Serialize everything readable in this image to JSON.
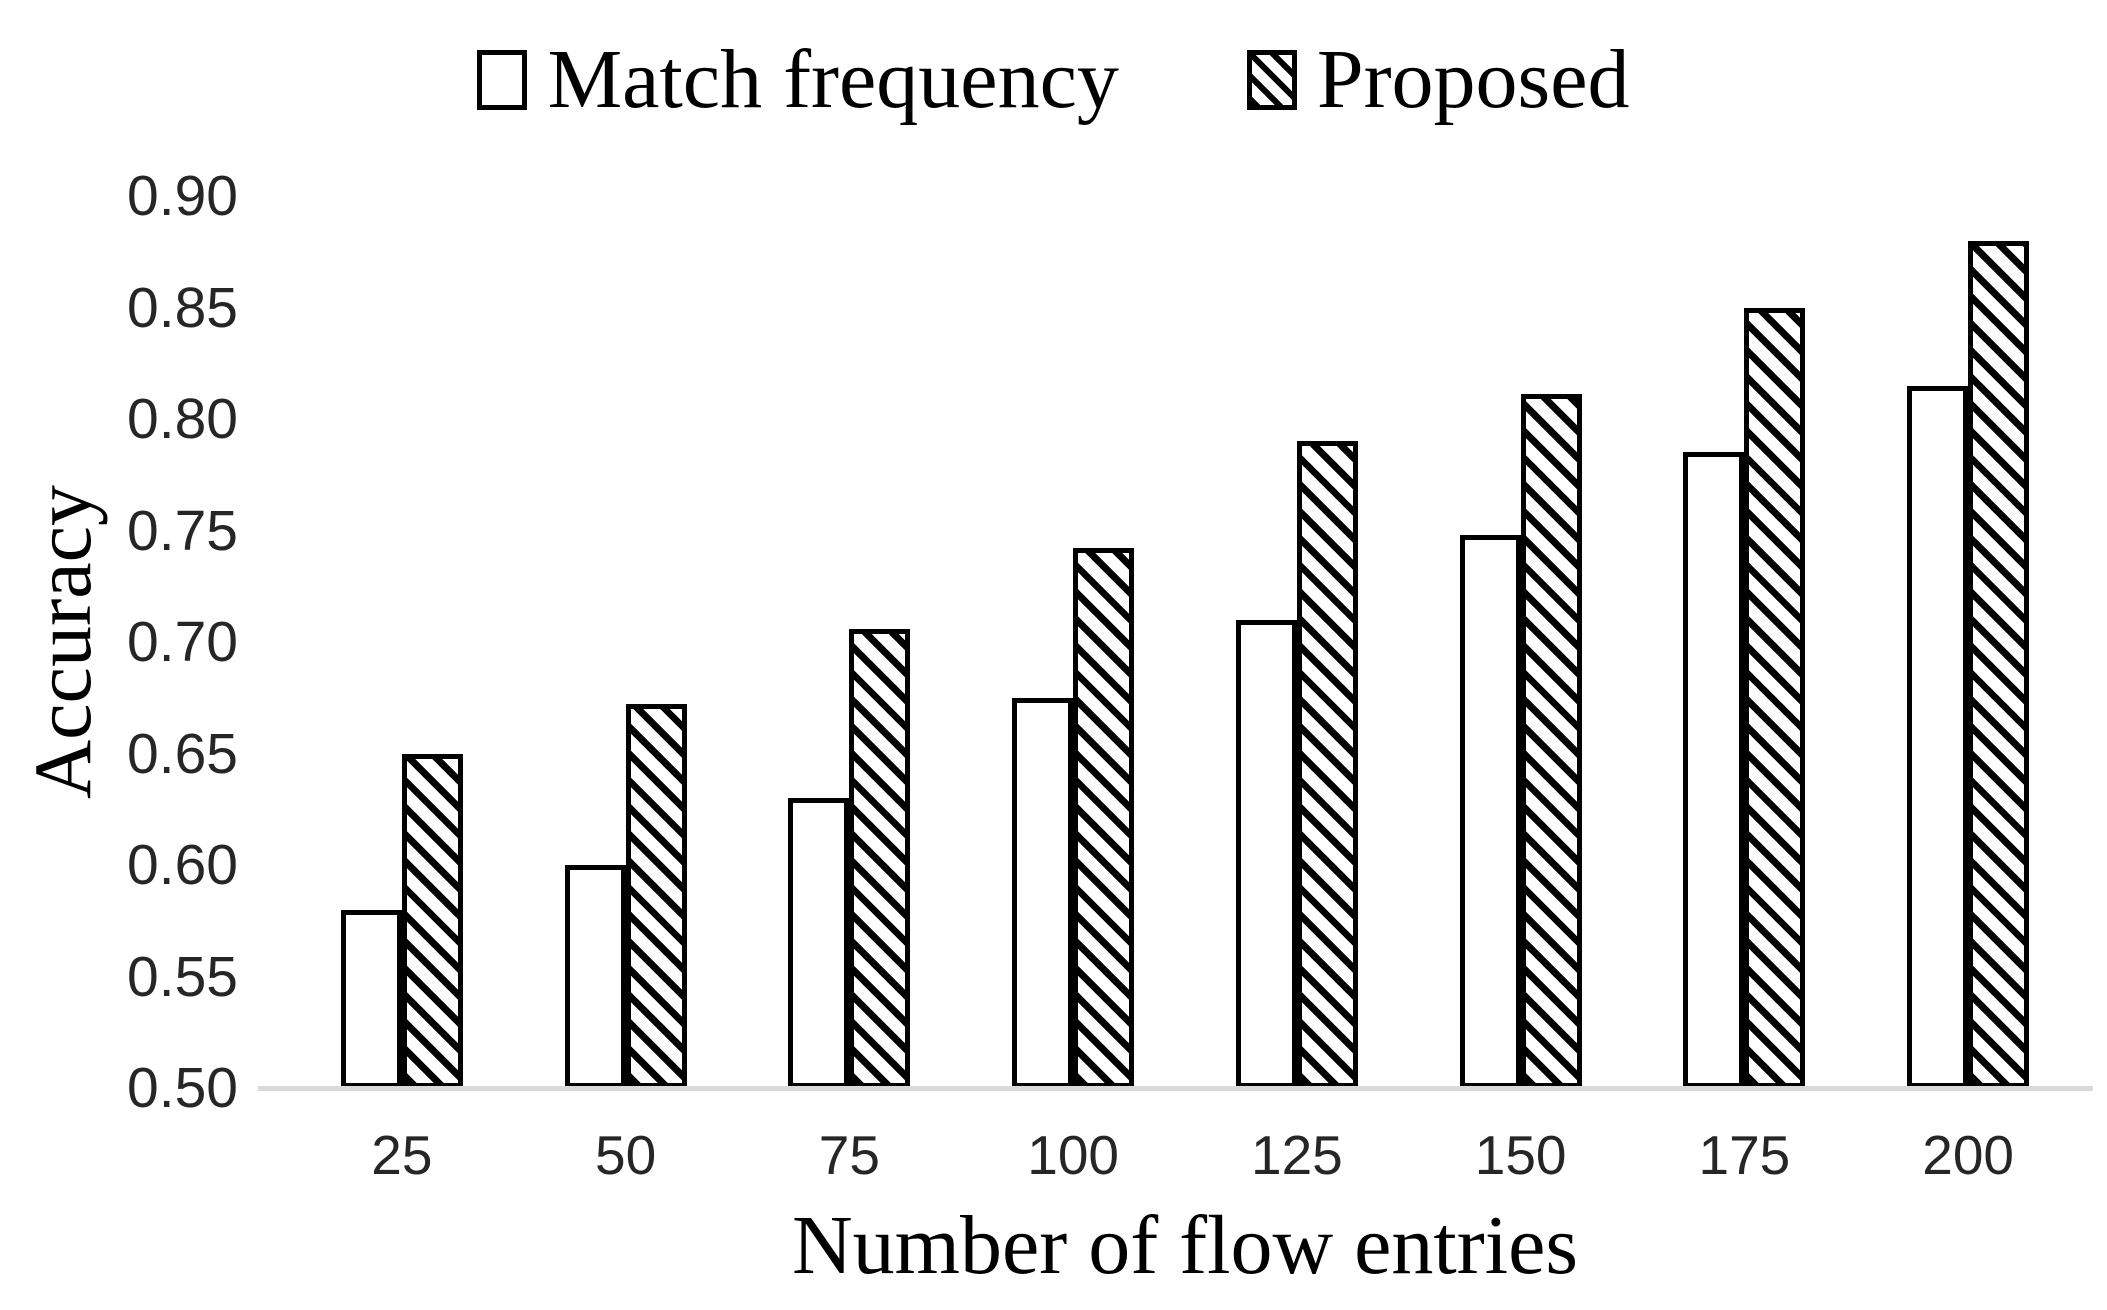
{
  "chart_data": {
    "type": "bar",
    "title": "",
    "categories": [
      "25",
      "50",
      "75",
      "100",
      "125",
      "150",
      "175",
      "200"
    ],
    "series": [
      {
        "name": "Match frequency",
        "style": "solid-white",
        "values": [
          0.58,
          0.6,
          0.63,
          0.675,
          0.71,
          0.748,
          0.785,
          0.815
        ]
      },
      {
        "name": "Proposed",
        "style": "diagonal-hatch",
        "values": [
          0.65,
          0.672,
          0.706,
          0.742,
          0.79,
          0.811,
          0.85,
          0.88
        ]
      }
    ],
    "xlabel": "Number of flow entries",
    "ylabel": "Accuracy",
    "ylim": [
      0.5,
      0.9
    ],
    "ytick_step": 0.05,
    "yticks": [
      "0.90",
      "0.85",
      "0.80",
      "0.75",
      "0.70",
      "0.65",
      "0.60",
      "0.55",
      "0.50"
    ],
    "legend_position": "top-center",
    "grid": false,
    "colors": {
      "bar_fill": "#ffffff",
      "bar_border": "#000000",
      "hatch": "#000000",
      "axis_line": "#d9d9d9",
      "tick_text": "#262626",
      "title_text": "#000000"
    }
  }
}
